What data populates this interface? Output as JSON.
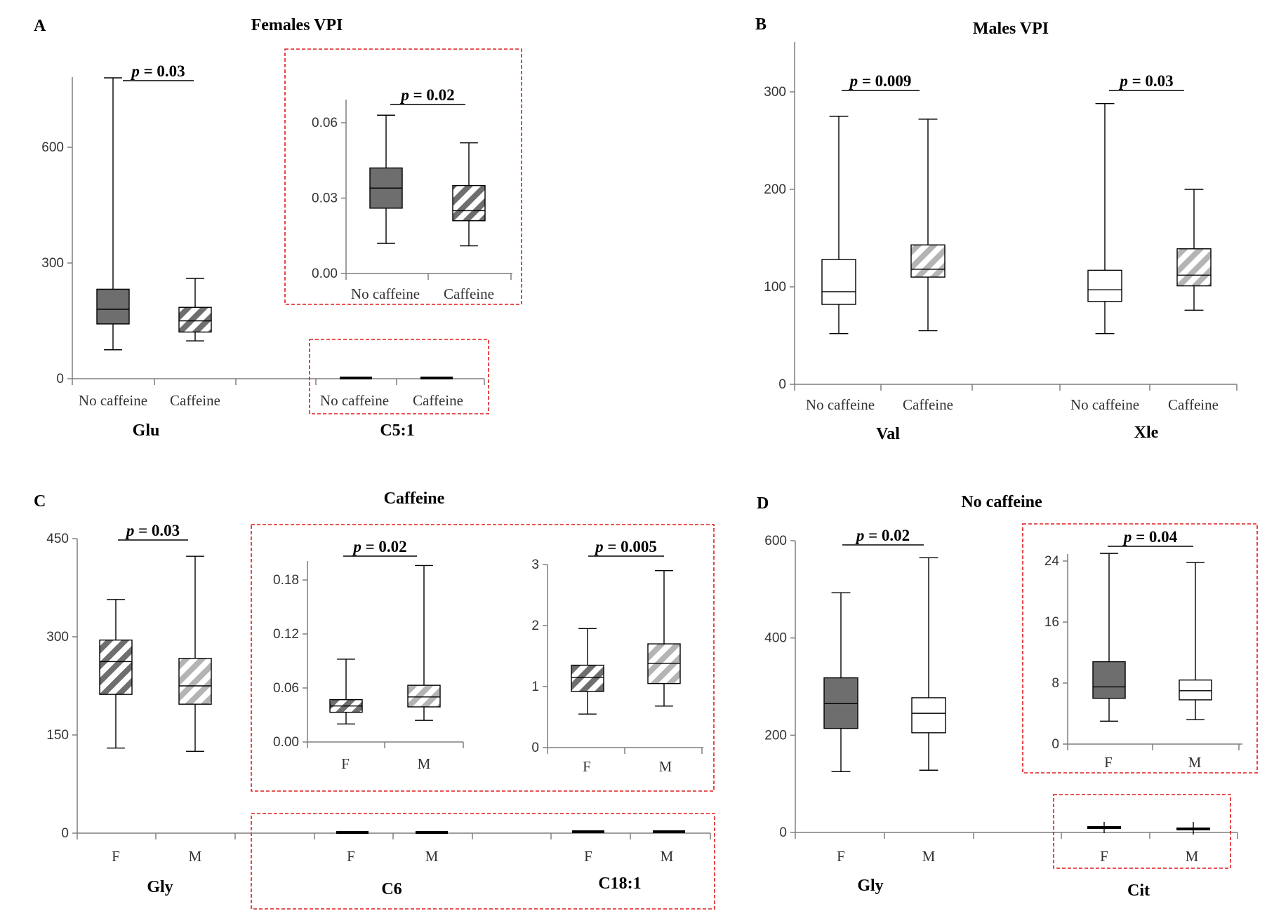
{
  "chart_data": [
    {
      "panel": "A",
      "type": "box",
      "title": "Females VPI",
      "ylim": [
        0,
        800
      ],
      "yticks": [
        "0",
        "300",
        "600"
      ],
      "groups": [
        {
          "label": "Glu",
          "boxes": [
            {
              "category": "No caffeine",
              "fill": "dark-solid",
              "min": 75,
              "q1": 142,
              "median": 180,
              "q3": 232,
              "max": 780
            },
            {
              "category": "Caffeine",
              "fill": "dark-hatch",
              "min": 98,
              "q1": 121,
              "median": 150,
              "q3": 185,
              "max": 260
            }
          ]
        },
        {
          "label": "C5:1",
          "boxes": [
            {
              "category": "No caffeine",
              "fill": "dark-solid",
              "min": 0.012,
              "q1": 0.026,
              "median": 0.034,
              "q3": 0.042,
              "max": 0.063
            },
            {
              "category": "Caffeine",
              "fill": "dark-hatch",
              "min": 0.011,
              "q1": 0.021,
              "median": 0.025,
              "q3": 0.035,
              "max": 0.052
            }
          ]
        }
      ],
      "significance": [
        {
          "group": "Glu",
          "label": "p = 0.03"
        },
        {
          "group": "C5:1",
          "label": "p = 0.02"
        }
      ],
      "inset": {
        "group": "C5:1",
        "ylim": [
          0,
          0.07
        ],
        "yticks": [
          "0.00",
          "0.03",
          "0.06"
        ]
      }
    },
    {
      "panel": "B",
      "type": "box",
      "title": "Males VPI",
      "ylim": [
        0,
        350
      ],
      "yticks": [
        "0",
        "100",
        "200",
        "300"
      ],
      "groups": [
        {
          "label": "Val",
          "boxes": [
            {
              "category": "No caffeine",
              "fill": "white",
              "min": 52,
              "q1": 82,
              "median": 95,
              "q3": 128,
              "max": 275
            },
            {
              "category": "Caffeine",
              "fill": "light-hatch",
              "min": 55,
              "q1": 110,
              "median": 118,
              "q3": 143,
              "max": 272
            }
          ]
        },
        {
          "label": "Xle",
          "boxes": [
            {
              "category": "No caffeine",
              "fill": "white",
              "min": 52,
              "q1": 85,
              "median": 97,
              "q3": 117,
              "max": 288
            },
            {
              "category": "Caffeine",
              "fill": "light-hatch",
              "min": 76,
              "q1": 101,
              "median": 112,
              "q3": 139,
              "max": 200
            }
          ]
        }
      ],
      "significance": [
        {
          "group": "Val",
          "label": "p = 0.009"
        },
        {
          "group": "Xle",
          "label": "p = 0.03"
        }
      ]
    },
    {
      "panel": "C",
      "type": "box",
      "title": "Caffeine",
      "ylim": [
        0,
        450
      ],
      "yticks": [
        "0",
        "150",
        "300",
        "450"
      ],
      "groups": [
        {
          "label": "Gly",
          "boxes": [
            {
              "category": "F",
              "fill": "dark-hatch",
              "min": 130,
              "q1": 212,
              "median": 262,
              "q3": 295,
              "max": 357
            },
            {
              "category": "M",
              "fill": "light-hatch",
              "min": 125,
              "q1": 197,
              "median": 225,
              "q3": 267,
              "max": 423
            }
          ]
        },
        {
          "label": "C6",
          "boxes": [
            {
              "category": "F",
              "fill": "dark-hatch",
              "min": 0.02,
              "q1": 0.033,
              "median": 0.04,
              "q3": 0.047,
              "max": 0.092
            },
            {
              "category": "M",
              "fill": "light-hatch",
              "min": 0.024,
              "q1": 0.039,
              "median": 0.05,
              "q3": 0.063,
              "max": 0.196
            }
          ]
        },
        {
          "label": "C18:1",
          "boxes": [
            {
              "category": "F",
              "fill": "dark-hatch",
              "min": 0.55,
              "q1": 0.92,
              "median": 1.15,
              "q3": 1.35,
              "max": 1.95
            },
            {
              "category": "M",
              "fill": "light-hatch",
              "min": 0.68,
              "q1": 1.05,
              "median": 1.38,
              "q3": 1.7,
              "max": 2.9
            }
          ]
        }
      ],
      "significance": [
        {
          "group": "Gly",
          "label": "p = 0.03"
        },
        {
          "group": "C6",
          "label": "p = 0.02"
        },
        {
          "group": "C18:1",
          "label": "p = 0.005"
        }
      ],
      "insets": [
        {
          "group": "C6",
          "ylim": [
            0,
            0.2
          ],
          "yticks": [
            "0.00",
            "0.06",
            "0.12",
            "0.18"
          ]
        },
        {
          "group": "C18:1",
          "ylim": [
            0,
            3
          ],
          "yticks": [
            "0",
            "1",
            "2",
            "3"
          ]
        }
      ]
    },
    {
      "panel": "D",
      "type": "box",
      "title": "No caffeine",
      "ylim": [
        0,
        600
      ],
      "yticks": [
        "0",
        "200",
        "400",
        "600"
      ],
      "groups": [
        {
          "label": "Gly",
          "boxes": [
            {
              "category": "F",
              "fill": "dark-solid",
              "min": 125,
              "q1": 214,
              "median": 265,
              "q3": 318,
              "max": 493
            },
            {
              "category": "M",
              "fill": "white",
              "min": 128,
              "q1": 205,
              "median": 245,
              "q3": 277,
              "max": 565
            }
          ]
        },
        {
          "label": "Cit",
          "boxes": [
            {
              "category": "F",
              "fill": "dark-solid",
              "min": 3,
              "q1": 6,
              "median": 7.5,
              "q3": 10.8,
              "max": 25
            },
            {
              "category": "M",
              "fill": "white",
              "min": 3.2,
              "q1": 5.8,
              "median": 7,
              "q3": 8.4,
              "max": 23.8
            }
          ]
        }
      ],
      "significance": [
        {
          "group": "Gly",
          "label": "p = 0.02"
        },
        {
          "group": "Cit",
          "label": "p = 0.04"
        }
      ],
      "inset": {
        "group": "Cit",
        "ylim": [
          0,
          25
        ],
        "yticks": [
          "0",
          "8",
          "16",
          "24"
        ]
      }
    }
  ],
  "colors": {
    "dark": "#6e6e6e",
    "light": "#b4b4b4",
    "highlight_box": "#e01b1b",
    "axis": "#7f7f7f"
  }
}
